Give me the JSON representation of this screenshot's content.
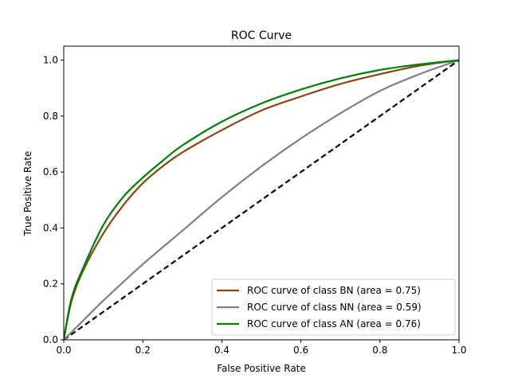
{
  "chart_data": {
    "type": "line",
    "title": "ROC Curve",
    "xlabel": "False Positive Rate",
    "ylabel": "True Positive Rate",
    "xlim": [
      0,
      1
    ],
    "ylim": [
      0,
      1.05
    ],
    "xticks": [
      0.0,
      0.2,
      0.4,
      0.6,
      0.8,
      1.0
    ],
    "yticks": [
      0.0,
      0.2,
      0.4,
      0.6,
      0.8,
      1.0
    ],
    "xtick_labels": [
      "0.0",
      "0.2",
      "0.4",
      "0.6",
      "0.8",
      "1.0"
    ],
    "ytick_labels": [
      "0.0",
      "0.2",
      "0.4",
      "0.6",
      "0.8",
      "1.0"
    ],
    "grid": false,
    "legend_position": "lower-right",
    "series": [
      {
        "name": "ROC curve of class BN (area = 0.75)",
        "color": "#8b4513",
        "x": [
          0,
          0.02,
          0.05,
          0.1,
          0.15,
          0.2,
          0.25,
          0.3,
          0.4,
          0.5,
          0.6,
          0.7,
          0.8,
          0.9,
          1.0
        ],
        "y": [
          0,
          0.14,
          0.25,
          0.38,
          0.48,
          0.56,
          0.62,
          0.67,
          0.75,
          0.82,
          0.87,
          0.915,
          0.95,
          0.98,
          1.0
        ]
      },
      {
        "name": "ROC curve of class NN (area = 0.59)",
        "color": "#808080",
        "x": [
          0,
          0.05,
          0.1,
          0.2,
          0.3,
          0.4,
          0.5,
          0.6,
          0.7,
          0.8,
          0.9,
          1.0
        ],
        "y": [
          0,
          0.07,
          0.14,
          0.27,
          0.39,
          0.51,
          0.62,
          0.72,
          0.81,
          0.89,
          0.95,
          1.0
        ]
      },
      {
        "name": "ROC curve of class AN (area = 0.76)",
        "color": "#008000",
        "x": [
          0,
          0.02,
          0.05,
          0.1,
          0.15,
          0.2,
          0.25,
          0.3,
          0.4,
          0.5,
          0.6,
          0.7,
          0.8,
          0.9,
          1.0
        ],
        "y": [
          0,
          0.15,
          0.26,
          0.41,
          0.51,
          0.58,
          0.64,
          0.695,
          0.78,
          0.845,
          0.895,
          0.935,
          0.965,
          0.985,
          1.0
        ]
      }
    ],
    "reference_line": {
      "x": [
        0,
        1
      ],
      "y": [
        0,
        1
      ],
      "color": "#000000",
      "style": "dashed"
    }
  }
}
